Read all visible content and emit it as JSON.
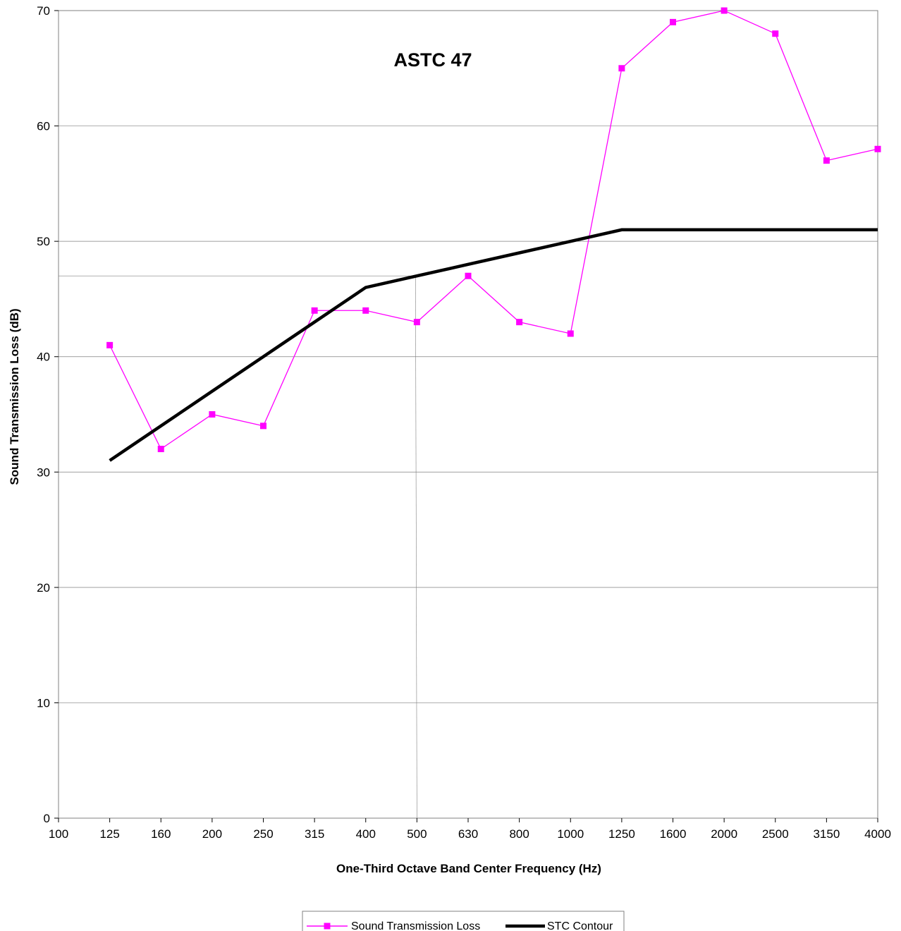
{
  "chart_data": {
    "type": "line",
    "title": "",
    "annotation": "ASTC 47",
    "xlabel": "One-Third Octave Band Center Frequency (Hz)",
    "ylabel": "Sound Transmission Loss (dB)",
    "categories": [
      "100",
      "125",
      "160",
      "200",
      "250",
      "315",
      "400",
      "500",
      "630",
      "800",
      "1000",
      "1250",
      "1600",
      "2000",
      "2500",
      "3150",
      "4000"
    ],
    "ylim": [
      0,
      70
    ],
    "yticks": [
      0,
      10,
      20,
      30,
      40,
      50,
      60,
      70
    ],
    "grid": "horizontal",
    "legend_position": "bottom",
    "series": [
      {
        "name": "Sound Transmission Loss",
        "color": "#ff00ff",
        "marker": "square",
        "x": [
          "125",
          "160",
          "200",
          "250",
          "315",
          "400",
          "500",
          "630",
          "800",
          "1000",
          "1250",
          "1600",
          "2000",
          "2500",
          "3150",
          "4000"
        ],
        "values": [
          41,
          32,
          35,
          34,
          44,
          44,
          43,
          47,
          43,
          42,
          65,
          69,
          70,
          68,
          57,
          58
        ]
      },
      {
        "name": "STC Contour",
        "color": "#000000",
        "marker": "none",
        "x": [
          "125",
          "160",
          "200",
          "250",
          "315",
          "400",
          "500",
          "630",
          "800",
          "1000",
          "1250",
          "1600",
          "2000",
          "2500",
          "3150",
          "4000"
        ],
        "values": [
          31,
          34,
          37,
          40,
          43,
          46,
          47,
          48,
          49,
          50,
          51,
          51,
          51,
          51,
          51,
          51
        ]
      }
    ]
  }
}
